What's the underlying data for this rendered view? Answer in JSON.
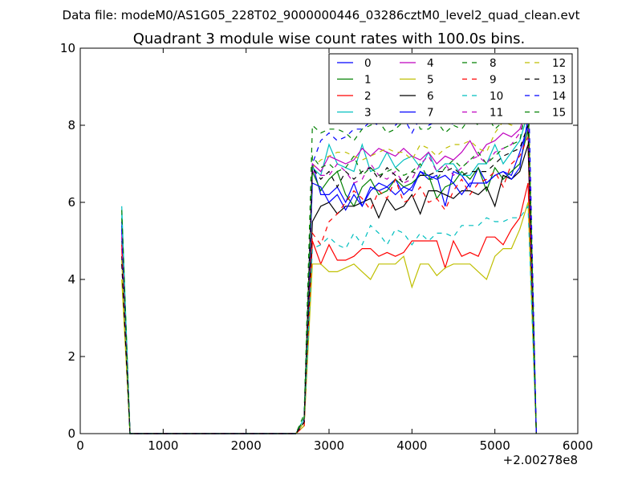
{
  "chart_data": {
    "type": "line",
    "suptitle": "Data file: modeM0/AS1G05_228T02_9000000446_03286cztM0_level2_quad_clean.evt",
    "title": "Quadrant 3 module wise count rates with 100.0s bins.",
    "xlabel": "",
    "ylabel": "",
    "x_offset_label": "+2.00278e8",
    "xlim": [
      0,
      6000
    ],
    "ylim": [
      0,
      10
    ],
    "xticks": [
      "0",
      "1000",
      "2000",
      "3000",
      "4000",
      "5000",
      "6000"
    ],
    "yticks": [
      "0",
      "2",
      "4",
      "6",
      "8",
      "10"
    ],
    "grid": false,
    "legend_placement": "top-right",
    "legend_columns": 4,
    "x": [
      500,
      600,
      700,
      800,
      900,
      1000,
      1100,
      1200,
      1300,
      1400,
      1500,
      1600,
      1700,
      1800,
      1900,
      2000,
      2100,
      2200,
      2300,
      2400,
      2500,
      2600,
      2700,
      2800,
      2900,
      3000,
      3100,
      3200,
      3300,
      3400,
      3500,
      3600,
      3700,
      3800,
      3900,
      4000,
      4100,
      4200,
      4300,
      4400,
      4500,
      4600,
      4700,
      4800,
      4900,
      5000,
      5100,
      5200,
      5300,
      5400,
      5500
    ],
    "series": [
      {
        "name": "0",
        "color": "#0000ff",
        "dash": false,
        "values": [
          5.4,
          0,
          0,
          0,
          0,
          0,
          0,
          0,
          0,
          0,
          0,
          0,
          0,
          0,
          0,
          0,
          0,
          0,
          0,
          0,
          0,
          0,
          0.3,
          7.0,
          6.2,
          6.2,
          6.4,
          6.0,
          6.5,
          5.9,
          6.3,
          6.5,
          6.4,
          6.6,
          6.2,
          6.4,
          6.8,
          6.6,
          6.7,
          5.9,
          6.8,
          6.7,
          6.4,
          6.9,
          6.5,
          6.7,
          6.8,
          6.7,
          7.3,
          8.0,
          0
        ]
      },
      {
        "name": "1",
        "color": "#008000",
        "dash": false,
        "values": [
          5.0,
          0,
          0,
          0,
          0,
          0,
          0,
          0,
          0,
          0,
          0,
          0,
          0,
          0,
          0,
          0,
          0,
          0,
          0,
          0,
          0,
          0,
          0.3,
          6.8,
          6.3,
          6.6,
          6.8,
          6.2,
          5.9,
          6.4,
          6.6,
          6.2,
          6.3,
          6.6,
          6.4,
          6.5,
          6.7,
          6.7,
          6.1,
          6.4,
          6.5,
          6.8,
          6.6,
          6.9,
          6.3,
          6.9,
          6.6,
          6.8,
          7.0,
          7.9,
          0
        ]
      },
      {
        "name": "2",
        "color": "#ff0000",
        "dash": false,
        "values": [
          4.8,
          0,
          0,
          0,
          0,
          0,
          0,
          0,
          0,
          0,
          0,
          0,
          0,
          0,
          0,
          0,
          0,
          0,
          0,
          0,
          0,
          0,
          0.2,
          5.0,
          4.4,
          4.9,
          4.5,
          4.5,
          4.6,
          4.8,
          4.8,
          4.6,
          4.7,
          4.6,
          4.7,
          5.0,
          5.0,
          5.0,
          5.0,
          4.3,
          5.0,
          4.6,
          4.7,
          4.6,
          5.1,
          5.1,
          4.9,
          5.3,
          5.6,
          6.5,
          0
        ]
      },
      {
        "name": "3",
        "color": "#00bfbf",
        "dash": false,
        "values": [
          5.9,
          0,
          0,
          0,
          0,
          0,
          0,
          0,
          0,
          0,
          0,
          0,
          0,
          0,
          0,
          0,
          0,
          0,
          0,
          0,
          0,
          0,
          0.4,
          6.9,
          6.7,
          7.5,
          7.0,
          6.9,
          6.8,
          7.5,
          6.8,
          6.9,
          7.3,
          6.9,
          7.1,
          7.2,
          6.9,
          7.3,
          6.8,
          7.0,
          7.0,
          6.7,
          6.7,
          7.0,
          7.0,
          7.5,
          7.0,
          7.3,
          7.6,
          8.3,
          0
        ]
      },
      {
        "name": "4",
        "color": "#bf00bf",
        "dash": false,
        "values": [
          5.2,
          0,
          0,
          0,
          0,
          0,
          0,
          0,
          0,
          0,
          0,
          0,
          0,
          0,
          0,
          0,
          0,
          0,
          0,
          0,
          0,
          0,
          0.3,
          7.0,
          6.8,
          7.2,
          7.1,
          7.0,
          7.1,
          7.4,
          7.2,
          7.4,
          7.3,
          7.2,
          7.4,
          7.2,
          7.1,
          7.3,
          7.0,
          7.2,
          7.1,
          7.3,
          7.6,
          7.2,
          7.5,
          7.6,
          7.8,
          7.7,
          7.9,
          8.5,
          0
        ]
      },
      {
        "name": "5",
        "color": "#bfbf00",
        "dash": false,
        "values": [
          4.0,
          0,
          0,
          0,
          0,
          0,
          0,
          0,
          0,
          0,
          0,
          0,
          0,
          0,
          0,
          0,
          0,
          0,
          0,
          0,
          0,
          0,
          0.2,
          4.4,
          4.4,
          4.2,
          4.2,
          4.3,
          4.4,
          4.2,
          4.0,
          4.4,
          4.4,
          4.4,
          4.6,
          3.8,
          4.4,
          4.4,
          4.1,
          4.3,
          4.4,
          4.4,
          4.4,
          4.2,
          4.0,
          4.6,
          4.8,
          4.8,
          5.3,
          6.0,
          0
        ]
      },
      {
        "name": "6",
        "color": "#000000",
        "dash": false,
        "values": [
          4.6,
          0,
          0,
          0,
          0,
          0,
          0,
          0,
          0,
          0,
          0,
          0,
          0,
          0,
          0,
          0,
          0,
          0,
          0,
          0,
          0,
          0,
          0.3,
          5.5,
          5.9,
          6.0,
          5.7,
          5.9,
          5.9,
          6.0,
          6.1,
          5.6,
          6.1,
          5.8,
          5.9,
          6.2,
          5.7,
          6.3,
          6.3,
          6.2,
          6.1,
          6.3,
          6.3,
          6.2,
          6.4,
          5.9,
          6.7,
          6.6,
          6.8,
          7.5,
          0
        ]
      },
      {
        "name": "7",
        "color": "#0000ff",
        "dash": false,
        "values": [
          5.5,
          0,
          0,
          0,
          0,
          0,
          0,
          0,
          0,
          0,
          0,
          0,
          0,
          0,
          0,
          0,
          0,
          0,
          0,
          0,
          0,
          0,
          0.3,
          6.5,
          6.4,
          6.0,
          6.2,
          5.8,
          6.2,
          5.9,
          6.4,
          6.3,
          6.4,
          6.2,
          6.4,
          6.3,
          6.8,
          6.7,
          6.6,
          6.7,
          6.5,
          6.2,
          6.5,
          6.5,
          6.5,
          6.7,
          6.8,
          6.6,
          6.9,
          8.2,
          0
        ]
      },
      {
        "name": "8",
        "color": "#008000",
        "dash": true,
        "values": [
          5.6,
          0,
          0,
          0,
          0,
          0,
          0,
          0,
          0,
          0,
          0,
          0,
          0,
          0,
          0,
          0,
          0,
          0,
          0,
          0,
          0,
          0,
          0.5,
          8.0,
          7.8,
          7.9,
          7.9,
          7.8,
          7.6,
          7.9,
          8.0,
          8.1,
          7.8,
          7.9,
          8.1,
          8.5,
          7.9,
          7.9,
          8.1,
          7.8,
          8.0,
          7.9,
          8.2,
          8.0,
          8.3,
          7.9,
          8.1,
          8.4,
          8.5,
          9.1,
          0
        ]
      },
      {
        "name": "9",
        "color": "#ff0000",
        "dash": true,
        "values": [
          4.9,
          0,
          0,
          0,
          0,
          0,
          0,
          0,
          0,
          0,
          0,
          0,
          0,
          0,
          0,
          0,
          0,
          0,
          0,
          0,
          0,
          0,
          0.2,
          5.2,
          4.9,
          5.5,
          5.7,
          6.0,
          6.3,
          6.1,
          5.8,
          6.3,
          6.1,
          6.6,
          6.0,
          6.1,
          6.4,
          6.0,
          6.1,
          5.8,
          6.3,
          6.6,
          6.2,
          6.5,
          6.6,
          6.8,
          6.4,
          7.0,
          7.2,
          7.7,
          0
        ]
      },
      {
        "name": "10",
        "color": "#00bfbf",
        "dash": true,
        "values": [
          5.7,
          0,
          0,
          0,
          0,
          0,
          0,
          0,
          0,
          0,
          0,
          0,
          0,
          0,
          0,
          0,
          0,
          0,
          0,
          0,
          0,
          0,
          0.3,
          4.8,
          4.9,
          5.1,
          4.9,
          4.8,
          5.2,
          4.9,
          5.4,
          5.2,
          4.9,
          5.3,
          5.2,
          4.9,
          5.2,
          5.0,
          5.2,
          5.2,
          5.1,
          5.4,
          5.4,
          5.4,
          5.6,
          5.5,
          5.5,
          5.6,
          5.6,
          5.9,
          0
        ]
      },
      {
        "name": "11",
        "color": "#bf00bf",
        "dash": true,
        "values": [
          5.1,
          0,
          0,
          0,
          0,
          0,
          0,
          0,
          0,
          0,
          0,
          0,
          0,
          0,
          0,
          0,
          0,
          0,
          0,
          0,
          0,
          0,
          0.3,
          6.8,
          6.7,
          6.7,
          7.0,
          6.8,
          6.5,
          6.6,
          7.0,
          6.7,
          6.6,
          6.8,
          6.5,
          6.6,
          7.0,
          7.2,
          6.8,
          7.0,
          6.7,
          6.9,
          7.1,
          7.2,
          7.0,
          7.3,
          7.4,
          7.5,
          7.8,
          8.4,
          0
        ]
      },
      {
        "name": "12",
        "color": "#bfbf00",
        "dash": true,
        "values": [
          4.5,
          0,
          0,
          0,
          0,
          0,
          0,
          0,
          0,
          0,
          0,
          0,
          0,
          0,
          0,
          0,
          0,
          0,
          0,
          0,
          0,
          0,
          0.3,
          6.9,
          7.1,
          7.2,
          7.3,
          7.3,
          7.2,
          7.1,
          7.2,
          7.3,
          7.4,
          7.3,
          7.3,
          7.1,
          7.5,
          7.4,
          7.2,
          7.4,
          7.5,
          7.5,
          7.6,
          7.4,
          7.3,
          7.8,
          8.1,
          8.0,
          8.1,
          8.9,
          0
        ]
      },
      {
        "name": "13",
        "color": "#000000",
        "dash": true,
        "values": [
          4.4,
          0,
          0,
          0,
          0,
          0,
          0,
          0,
          0,
          0,
          0,
          0,
          0,
          0,
          0,
          0,
          0,
          0,
          0,
          0,
          0,
          0,
          0.3,
          6.9,
          6.6,
          6.8,
          6.4,
          6.8,
          6.6,
          6.8,
          6.9,
          6.6,
          6.9,
          6.7,
          6.5,
          6.8,
          6.7,
          6.7,
          6.8,
          6.8,
          6.9,
          6.7,
          6.8,
          6.8,
          6.8,
          7.0,
          7.2,
          7.3,
          7.4,
          8.0,
          0
        ]
      },
      {
        "name": "14",
        "color": "#0000ff",
        "dash": true,
        "values": [
          5.3,
          0,
          0,
          0,
          0,
          0,
          0,
          0,
          0,
          0,
          0,
          0,
          0,
          0,
          0,
          0,
          0,
          0,
          0,
          0,
          0,
          0,
          0.4,
          7.0,
          7.6,
          7.8,
          7.6,
          7.7,
          7.9,
          7.9,
          8.1,
          8.0,
          8.2,
          8.0,
          8.2,
          7.8,
          8.2,
          8.0,
          8.1,
          8.3,
          8.0,
          8.3,
          8.5,
          8.6,
          8.7,
          8.5,
          8.8,
          9.0,
          9.3,
          9.5,
          0
        ]
      },
      {
        "name": "15",
        "color": "#008000",
        "dash": true,
        "values": [
          5.8,
          0,
          0,
          0,
          0,
          0,
          0,
          0,
          0,
          0,
          0,
          0,
          0,
          0,
          0,
          0,
          0,
          0,
          0,
          0,
          0,
          0,
          0.4,
          7.2,
          6.9,
          7.0,
          6.8,
          6.9,
          7.2,
          6.7,
          6.9,
          6.7,
          6.8,
          6.9,
          6.7,
          6.8,
          7.0,
          6.6,
          6.6,
          6.9,
          7.1,
          6.9,
          7.1,
          7.3,
          7.0,
          7.2,
          7.4,
          7.5,
          7.6,
          8.7,
          0
        ]
      }
    ]
  }
}
